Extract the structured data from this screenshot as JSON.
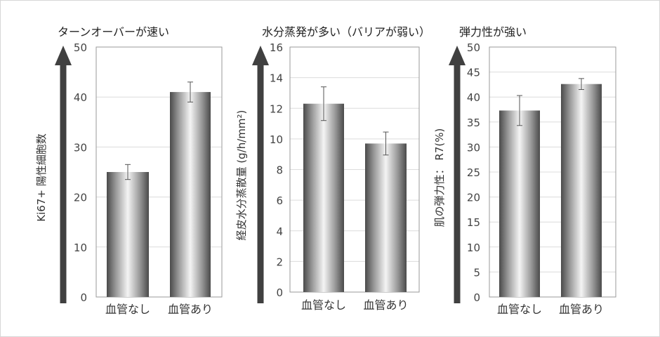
{
  "chart_data": [
    {
      "type": "bar",
      "title": "ターンオーバーが速い",
      "ylabel": "Ki67+ 陽性細胞数",
      "categories": [
        "血管なし",
        "血管あり"
      ],
      "values": [
        25,
        41
      ],
      "errors": [
        1.5,
        2
      ],
      "ylim": [
        0,
        50
      ],
      "yticks": [
        0,
        10,
        20,
        30,
        40,
        50
      ],
      "grid": true
    },
    {
      "type": "bar",
      "title": "水分蒸発が多い（バリアが弱い）",
      "ylabel": "経皮水分蒸散量 (g/h/mm²)",
      "categories": [
        "血管なし",
        "血管あり"
      ],
      "values": [
        12.3,
        9.7
      ],
      "errors": [
        1.1,
        0.75
      ],
      "ylim": [
        0,
        16
      ],
      "yticks": [
        0,
        2,
        4,
        6,
        8,
        10,
        12,
        14,
        16
      ],
      "grid": true
    },
    {
      "type": "bar",
      "title": "弾力性が強い",
      "ylabel": "肌の弾力性： R7(%)",
      "categories": [
        "血管なし",
        "血管あり"
      ],
      "values": [
        37.3,
        42.6
      ],
      "errors": [
        3,
        1.1
      ],
      "ylim": [
        0,
        50
      ],
      "yticks": [
        0,
        5,
        10,
        15,
        20,
        25,
        30,
        35,
        40,
        45,
        50
      ],
      "grid": true
    }
  ]
}
